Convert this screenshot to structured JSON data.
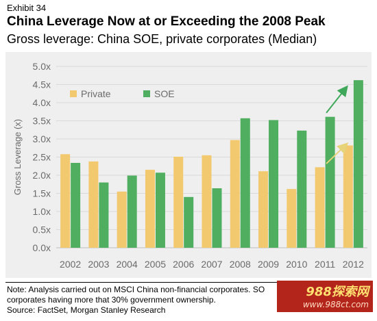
{
  "header": {
    "exhibit": "Exhibit 34",
    "title": "China Leverage Now at or Exceeding the 2008 Peak",
    "subtitle": "Gross leverage: China SOE, private corporates (Median)"
  },
  "colors": {
    "private": "#f2c96e",
    "soe": "#4fae5f",
    "arrow_private": "#e7d37a",
    "arrow_soe": "#3fa85a",
    "plot_bg": "#efefef",
    "grid": "#d9d9d9",
    "axis_text": "#6a6a6a"
  },
  "chart_data": {
    "type": "bar",
    "categories": [
      "2002",
      "2003",
      "2004",
      "2005",
      "2006",
      "2007",
      "2008",
      "2009",
      "2010",
      "2011",
      "2012"
    ],
    "series": [
      {
        "name": "Private",
        "values": [
          2.58,
          2.38,
          1.55,
          2.15,
          2.51,
          2.55,
          2.97,
          2.11,
          1.62,
          2.22,
          2.82
        ]
      },
      {
        "name": "SOE",
        "values": [
          2.34,
          1.8,
          1.99,
          2.07,
          1.4,
          1.64,
          3.57,
          3.52,
          3.23,
          3.61,
          4.62
        ]
      }
    ],
    "ylabel": "Gross Leverage (x)",
    "ylim": [
      0,
      5
    ],
    "ytick_values": [
      0,
      0.5,
      1,
      1.5,
      2,
      2.5,
      3,
      3.5,
      4,
      4.5,
      5
    ],
    "ytick_labels": [
      "0.0x",
      "0.5x",
      "1.0x",
      "1.5x",
      "2.0x",
      "2.5x",
      "3.0x",
      "3.5x",
      "4.0x",
      "4.5x",
      "5.0x"
    ],
    "legend_position": "top-left",
    "grid": true,
    "annotations": [
      {
        "type": "arrow",
        "series": "Private",
        "from_category": "2011",
        "to_category": "2012",
        "from_y": 2.32,
        "to_y": 2.85
      },
      {
        "type": "arrow",
        "series": "SOE",
        "from_category": "2011",
        "to_category": "2012",
        "from_y": 3.72,
        "to_y": 4.42
      }
    ]
  },
  "footer": {
    "note_line1": "Note: Analysis carried out on MSCI China non-financial corporates. SO",
    "note_line2": "corporates having more that 30% government ownership.",
    "source": "Source: FactSet, Morgan Stanley Research"
  },
  "watermark": {
    "main": "988探索网",
    "url": "www.988ct.com"
  }
}
